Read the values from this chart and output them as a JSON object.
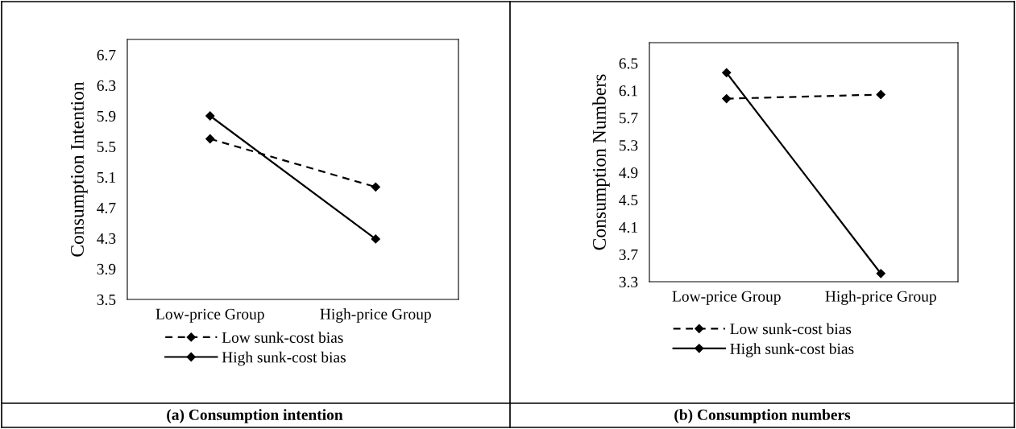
{
  "chart_data": [
    {
      "type": "line",
      "title": "(a) Consumption intention",
      "ylabel": "Consumption Intention",
      "categories": [
        "Low-price Group",
        "High-price Group"
      ],
      "series": [
        {
          "name": "Low sunk-cost bias",
          "color": "#000000",
          "line_style": "dashed",
          "values": [
            5.6,
            4.97
          ]
        },
        {
          "name": "High sunk-cost bias",
          "color": "#000000",
          "line_style": "solid",
          "values": [
            5.9,
            4.29
          ]
        }
      ],
      "ylim": [
        3.5,
        6.9
      ],
      "yticks": [
        3.5,
        3.9,
        4.3,
        4.7,
        5.1,
        5.5,
        5.9,
        6.3,
        6.7
      ],
      "marker": "diamond",
      "grid": false,
      "legend": "bottom"
    },
    {
      "type": "line",
      "title": "(b) Consumption numbers",
      "ylabel": "Consumption Numbers",
      "categories": [
        "Low-price Group",
        "High-price Group"
      ],
      "series": [
        {
          "name": "Low sunk-cost bias",
          "color": "#000000",
          "line_style": "dashed",
          "values": [
            5.98,
            6.04
          ]
        },
        {
          "name": "High sunk-cost bias",
          "color": "#000000",
          "line_style": "solid",
          "values": [
            6.36,
            3.42
          ]
        }
      ],
      "ylim": [
        3.3,
        6.8
      ],
      "yticks": [
        3.3,
        3.7,
        4.1,
        4.5,
        4.9,
        5.3,
        5.7,
        6.1,
        6.5
      ],
      "marker": "diamond",
      "grid": false,
      "legend": "bottom"
    }
  ]
}
